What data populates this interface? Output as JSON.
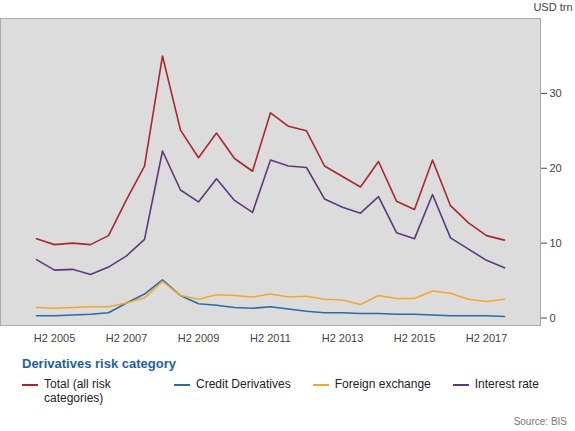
{
  "chart_data": {
    "type": "line",
    "y_label": "USD trn",
    "legend_title": "Derivatives risk category",
    "source": "Source: BIS",
    "legend": "bottom",
    "grid": false,
    "x": [
      null,
      "H2 2005",
      null,
      null,
      null,
      "H2 2007",
      null,
      null,
      null,
      "H2 2009",
      null,
      null,
      null,
      "H2 2011",
      null,
      null,
      null,
      "H2 2013",
      null,
      null,
      null,
      "H2 2015",
      null,
      null,
      null,
      "H2 2017",
      null
    ],
    "ylim": [
      -1,
      40
    ],
    "yticks": [
      0,
      10,
      20,
      30
    ],
    "series": [
      {
        "name": "Total (all risk categories)",
        "color": "#a8282e",
        "values": [
          10.6,
          9.8,
          10.0,
          9.8,
          11.0,
          15.8,
          20.3,
          35.0,
          25.1,
          21.4,
          24.7,
          21.3,
          19.6,
          27.4,
          25.6,
          25.0,
          20.3,
          18.9,
          17.5,
          20.9,
          15.6,
          14.5,
          21.1,
          15.0,
          12.7,
          11.0,
          10.4
        ]
      },
      {
        "name": "Credit Derivatives",
        "color": "#2b6aa8",
        "values": [
          0.3,
          0.3,
          0.4,
          0.5,
          0.7,
          2.0,
          3.2,
          5.1,
          3.0,
          1.9,
          1.7,
          1.4,
          1.3,
          1.5,
          1.2,
          0.9,
          0.7,
          0.7,
          0.6,
          0.6,
          0.5,
          0.5,
          0.4,
          0.3,
          0.3,
          0.3,
          0.2
        ]
      },
      {
        "name": "Foreign exchange",
        "color": "#f0a830",
        "values": [
          1.4,
          1.3,
          1.4,
          1.5,
          1.5,
          2.0,
          2.7,
          4.9,
          3.0,
          2.5,
          3.1,
          3.0,
          2.8,
          3.2,
          2.8,
          2.9,
          2.5,
          2.4,
          1.8,
          3.0,
          2.6,
          2.6,
          3.6,
          3.3,
          2.5,
          2.2,
          2.5
        ]
      },
      {
        "name": "Interest rate",
        "color": "#5b3a7c",
        "values": [
          7.8,
          6.4,
          6.5,
          5.8,
          6.8,
          8.3,
          10.5,
          22.3,
          17.1,
          15.5,
          18.6,
          15.7,
          14.1,
          21.1,
          20.3,
          20.1,
          15.9,
          14.8,
          14.0,
          16.2,
          11.4,
          10.6,
          16.5,
          10.7,
          9.2,
          7.7,
          6.7
        ]
      }
    ]
  }
}
